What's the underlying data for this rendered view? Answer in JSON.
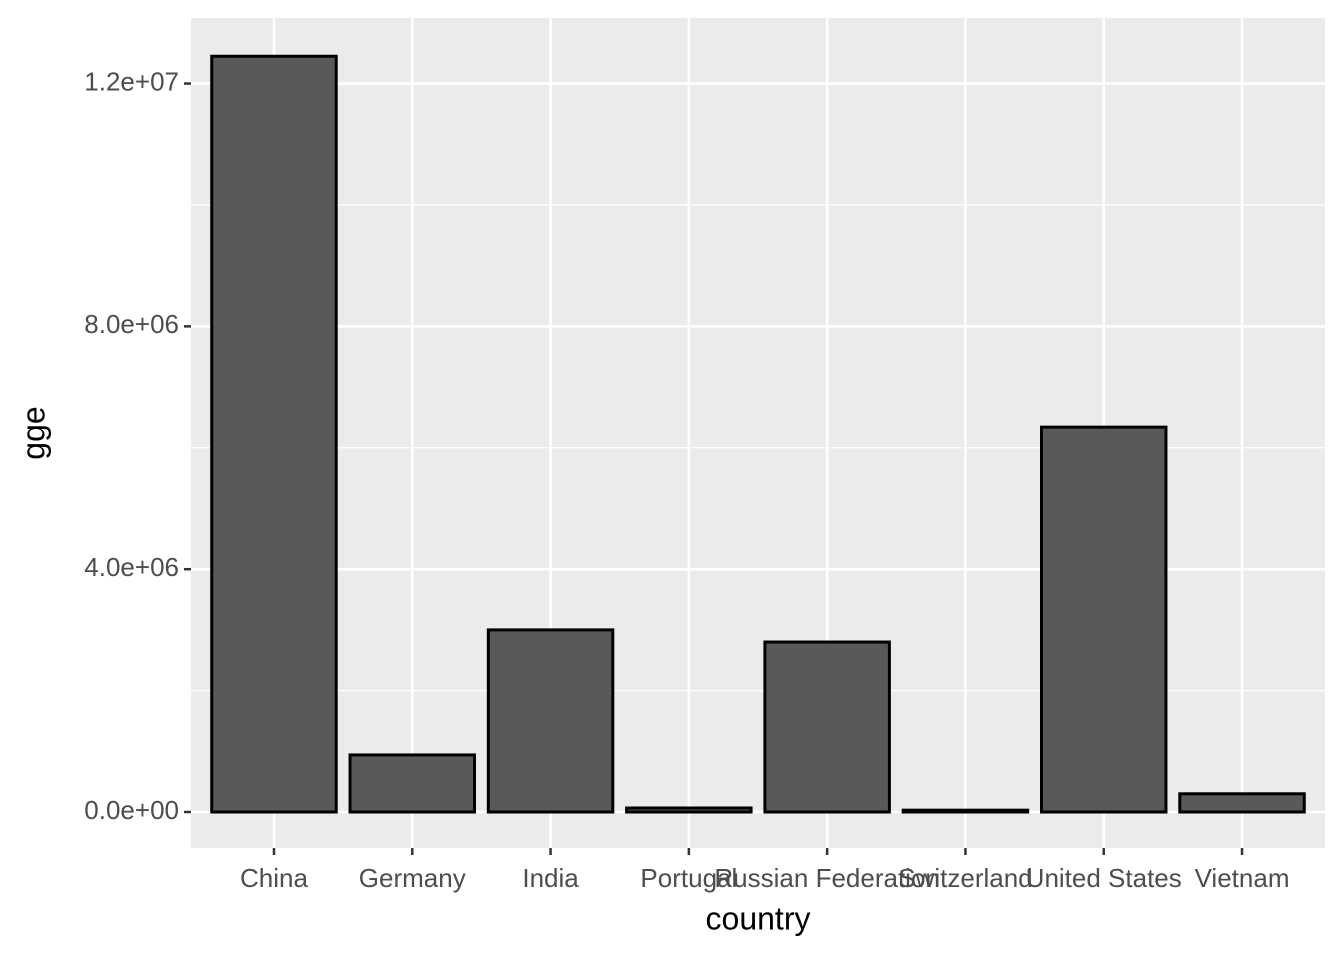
{
  "chart_data": {
    "type": "bar",
    "x_label": "country",
    "y_label": "gge",
    "categories": [
      "China",
      "Germany",
      "India",
      "Portugal",
      "Russian Federation",
      "Switzerland",
      "United States",
      "Vietnam"
    ],
    "values": [
      12450000,
      940000,
      3000000,
      66000,
      2800000,
      30000,
      6340000,
      300000
    ],
    "color": "#595959",
    "edge_color": "#000000",
    "ylim": [
      -593000,
      13080000
    ],
    "yticks": [
      {
        "value": 0,
        "label": "0.0e+00"
      },
      {
        "value": 4000000,
        "label": "4.0e+06"
      },
      {
        "value": 8000000,
        "label": "8.0e+06"
      },
      {
        "value": 12000000,
        "label": "1.2e+07"
      }
    ],
    "minor_yticks": [
      2000000,
      6000000,
      10000000
    ],
    "grid": true
  }
}
